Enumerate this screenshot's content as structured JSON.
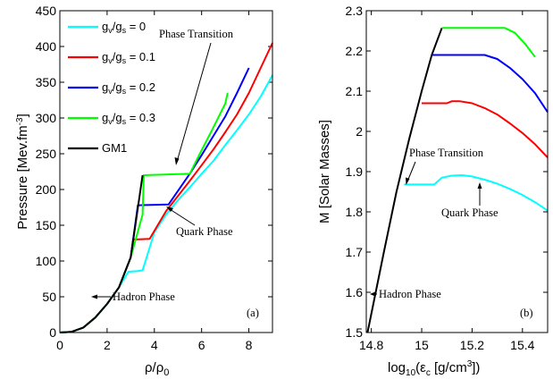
{
  "chart_data": [
    {
      "type": "line",
      "panel_label": "(a)",
      "xlabel_main": "ρ/ρ",
      "xlabel_sub": "0",
      "ylabel_main": "Pressure [Mev.fm",
      "ylabel_sup": "-3",
      "ylabel_end": "]",
      "xlim": [
        0,
        9
      ],
      "ylim": [
        0,
        450
      ],
      "xticks": [
        0,
        2,
        4,
        6,
        8
      ],
      "yticks": [
        0,
        50,
        100,
        150,
        200,
        250,
        300,
        350,
        400,
        450
      ],
      "legend": {
        "position": "top-left",
        "entries": [
          {
            "main": "g",
            "sub1": "v",
            "mid": "/g",
            "sub2": "s",
            "tail": " = 0",
            "color": "#00ffff"
          },
          {
            "main": "g",
            "sub1": "v",
            "mid": "/g",
            "sub2": "s",
            "tail": " = 0.1",
            "color": "#ff0000"
          },
          {
            "main": "g",
            "sub1": "v",
            "mid": "/g",
            "sub2": "s",
            "tail": " = 0.2",
            "color": "#0000ff"
          },
          {
            "main": "g",
            "sub1": "v",
            "mid": "/g",
            "sub2": "s",
            "tail": " = 0.3",
            "color": "#00ff00"
          },
          {
            "main": "GM1",
            "sub1": "",
            "mid": "",
            "sub2": "",
            "tail": "",
            "color": "#000000"
          }
        ]
      },
      "annotations": {
        "phase_transition": "Phase Transition",
        "quark_phase": "Quark Phase",
        "hadron_phase": "Hadron Phase"
      },
      "series": [
        {
          "color": "#00ffff",
          "x": [
            0,
            0.5,
            1,
            1.5,
            2,
            2.5,
            2.9,
            3.3,
            3.5,
            4,
            4.5,
            5,
            5.5,
            6,
            6.5,
            7,
            7.5,
            8,
            8.5,
            9
          ],
          "y": [
            0,
            1,
            7,
            21,
            40,
            63,
            85,
            86,
            87,
            140,
            165,
            185,
            203,
            222,
            240,
            262,
            283,
            305,
            330,
            360
          ]
        },
        {
          "color": "#ff0000",
          "x": [
            0,
            0.5,
            1,
            1.5,
            2,
            2.5,
            3,
            3.1,
            3.8,
            4.5,
            5,
            5.5,
            6,
            6.5,
            7,
            7.5,
            8,
            8.5,
            9
          ],
          "y": [
            0,
            1,
            7,
            21,
            40,
            63,
            105,
            130,
            131,
            170,
            191,
            212,
            234,
            256,
            280,
            305,
            335,
            370,
            405
          ]
        },
        {
          "color": "#0000ff",
          "x": [
            0,
            0.5,
            1,
            1.5,
            2,
            2.5,
            3,
            3.3,
            4.6,
            5,
            5.5,
            6,
            6.5,
            7,
            7.5,
            8
          ],
          "y": [
            0,
            1,
            7,
            21,
            40,
            63,
            105,
            178,
            179,
            198,
            222,
            248,
            275,
            302,
            335,
            370
          ]
        },
        {
          "color": "#00ff00",
          "x": [
            0,
            0.5,
            1,
            1.5,
            2,
            2.5,
            3,
            3.5,
            3.55,
            5.5,
            6,
            6.5,
            7,
            7.1
          ],
          "y": [
            0,
            1,
            7,
            21,
            40,
            63,
            105,
            165,
            220,
            222,
            255,
            287,
            320,
            335
          ]
        },
        {
          "color": "#000000",
          "x": [
            0,
            0.5,
            1,
            1.5,
            2,
            2.5,
            3,
            3.5
          ],
          "y": [
            0,
            1,
            7,
            21,
            40,
            63,
            105,
            220
          ]
        }
      ]
    },
    {
      "type": "line",
      "panel_label": "(b)",
      "xlabel_main": "log",
      "xlabel_sub1": "10",
      "xlabel_mid": "(ε",
      "xlabel_sub2": "c",
      "xlabel_rest": " [g/cm",
      "xlabel_sup": "3",
      "xlabel_end": "])",
      "ylabel": "M [Solar Masses]",
      "xlim": [
        14.78,
        15.5
      ],
      "ylim": [
        1.5,
        2.3
      ],
      "xticks": [
        14.8,
        15,
        15.2,
        15.4
      ],
      "yticks": [
        1.5,
        1.6,
        1.7,
        1.8,
        1.9,
        2.0,
        2.1,
        2.2,
        2.3
      ],
      "xtick_labels": [
        "14.8",
        "15",
        "15.2",
        "15.4"
      ],
      "ytick_labels": [
        "1.5",
        "1.6",
        "1.7",
        "1.8",
        "1.9",
        "2",
        "2.1",
        "2.2",
        "2.3"
      ],
      "annotations": {
        "phase_transition": "Phase Transition",
        "quark_phase": "Quark Phase",
        "hadron_phase": "Hadron Phase"
      },
      "series": [
        {
          "color": "#000000",
          "x": [
            14.785,
            14.85,
            14.9,
            14.95,
            15.0,
            15.04,
            15.08
          ],
          "y": [
            1.5,
            1.7,
            1.85,
            1.98,
            2.1,
            2.19,
            2.257
          ]
        },
        {
          "color": "#00ffff",
          "x": [
            14.93,
            15.05,
            15.08,
            15.12,
            15.16,
            15.2,
            15.25,
            15.3,
            15.35,
            15.4,
            15.45,
            15.5
          ],
          "y": [
            1.868,
            1.868,
            1.885,
            1.89,
            1.891,
            1.888,
            1.88,
            1.87,
            1.857,
            1.842,
            1.824,
            1.803
          ]
        },
        {
          "color": "#ff0000",
          "x": [
            15.0,
            15.1,
            15.12,
            15.15,
            15.2,
            15.25,
            15.3,
            15.35,
            15.4,
            15.45,
            15.5
          ],
          "y": [
            2.07,
            2.07,
            2.075,
            2.075,
            2.07,
            2.058,
            2.042,
            2.02,
            1.996,
            1.968,
            1.935
          ]
        },
        {
          "color": "#0000ff",
          "x": [
            15.04,
            15.25,
            15.3,
            15.35,
            15.4,
            15.45,
            15.5
          ],
          "y": [
            2.19,
            2.19,
            2.18,
            2.158,
            2.13,
            2.095,
            2.048
          ]
        },
        {
          "color": "#00ff00",
          "x": [
            15.08,
            15.33,
            15.37,
            15.41,
            15.45
          ],
          "y": [
            2.257,
            2.257,
            2.245,
            2.218,
            2.185
          ]
        }
      ]
    }
  ]
}
